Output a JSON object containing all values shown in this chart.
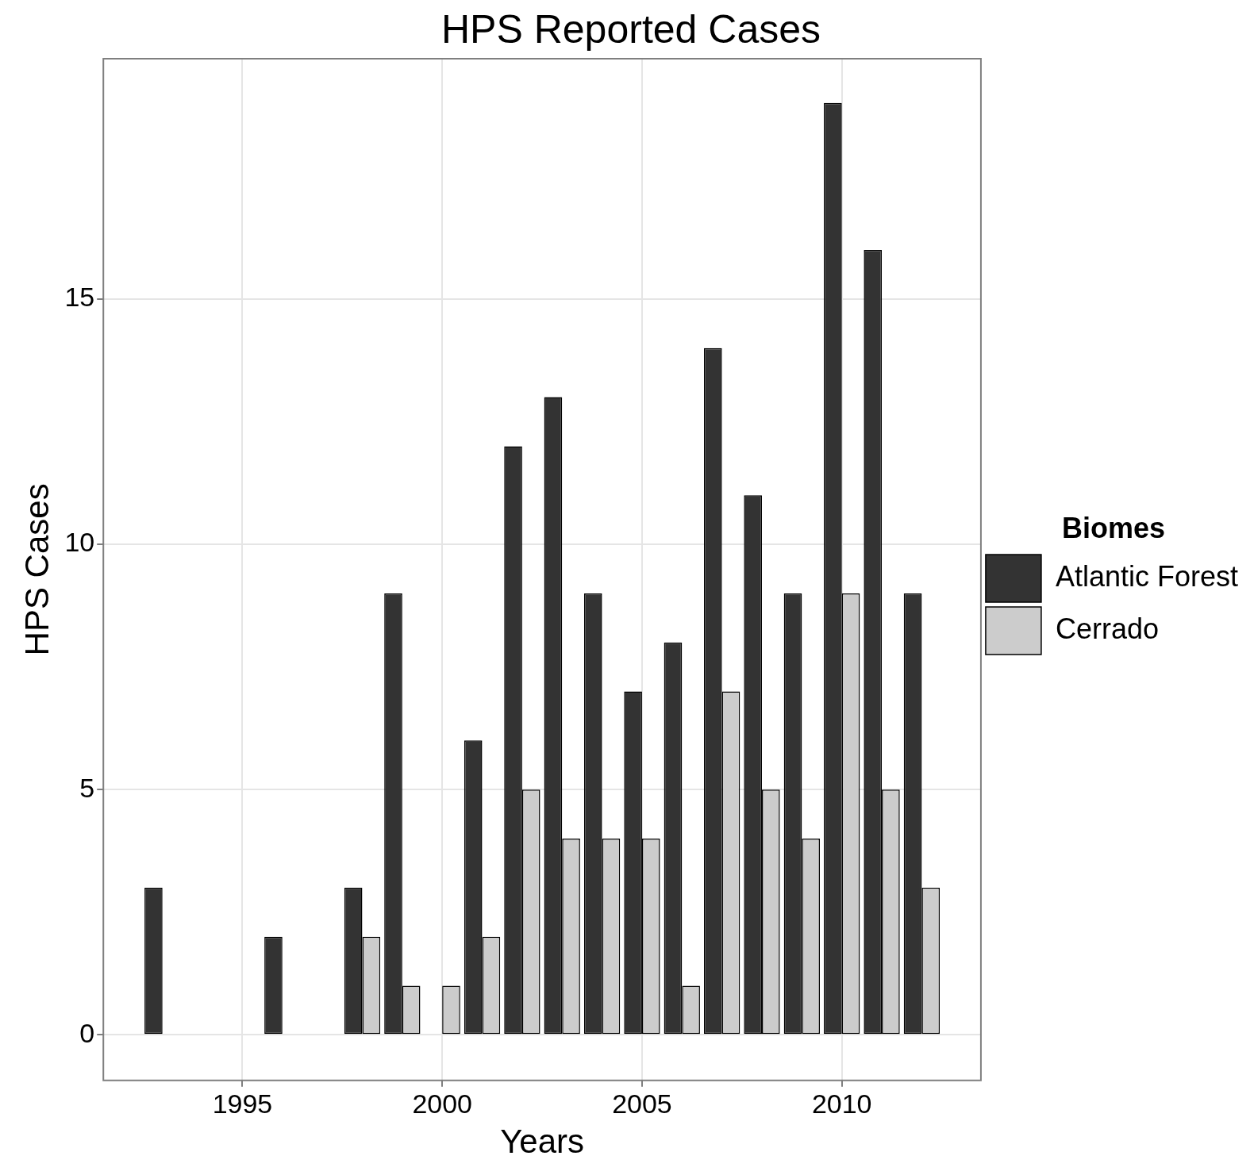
{
  "chart_data": {
    "type": "bar",
    "title": "HPS Reported Cases",
    "xlabel": "Years",
    "ylabel": "HPS Cases",
    "legend_title": "Biomes",
    "x": [
      1993,
      1996,
      1998,
      1999,
      2000,
      2001,
      2002,
      2003,
      2004,
      2005,
      2006,
      2007,
      2008,
      2009,
      2010,
      2011,
      2012
    ],
    "series": [
      {
        "name": "Atlantic Forest",
        "color": "#333333",
        "values": [
          3,
          2,
          3,
          9,
          0,
          6,
          12,
          13,
          9,
          7,
          8,
          14,
          11,
          9,
          19,
          16,
          9
        ]
      },
      {
        "name": "Cerrado",
        "color": "#cccccc",
        "values": [
          0,
          0,
          2,
          1,
          1,
          2,
          5,
          4,
          4,
          4,
          1,
          7,
          5,
          4,
          9,
          5,
          3
        ]
      }
    ],
    "xlim": [
      1991.52,
      2013.48
    ],
    "xticks": [
      1995,
      2000,
      2005,
      2010
    ],
    "ylim": [
      -0.93,
      19.9
    ],
    "yticks": [
      0,
      5,
      10,
      15
    ],
    "grid": true,
    "legend": "right"
  }
}
